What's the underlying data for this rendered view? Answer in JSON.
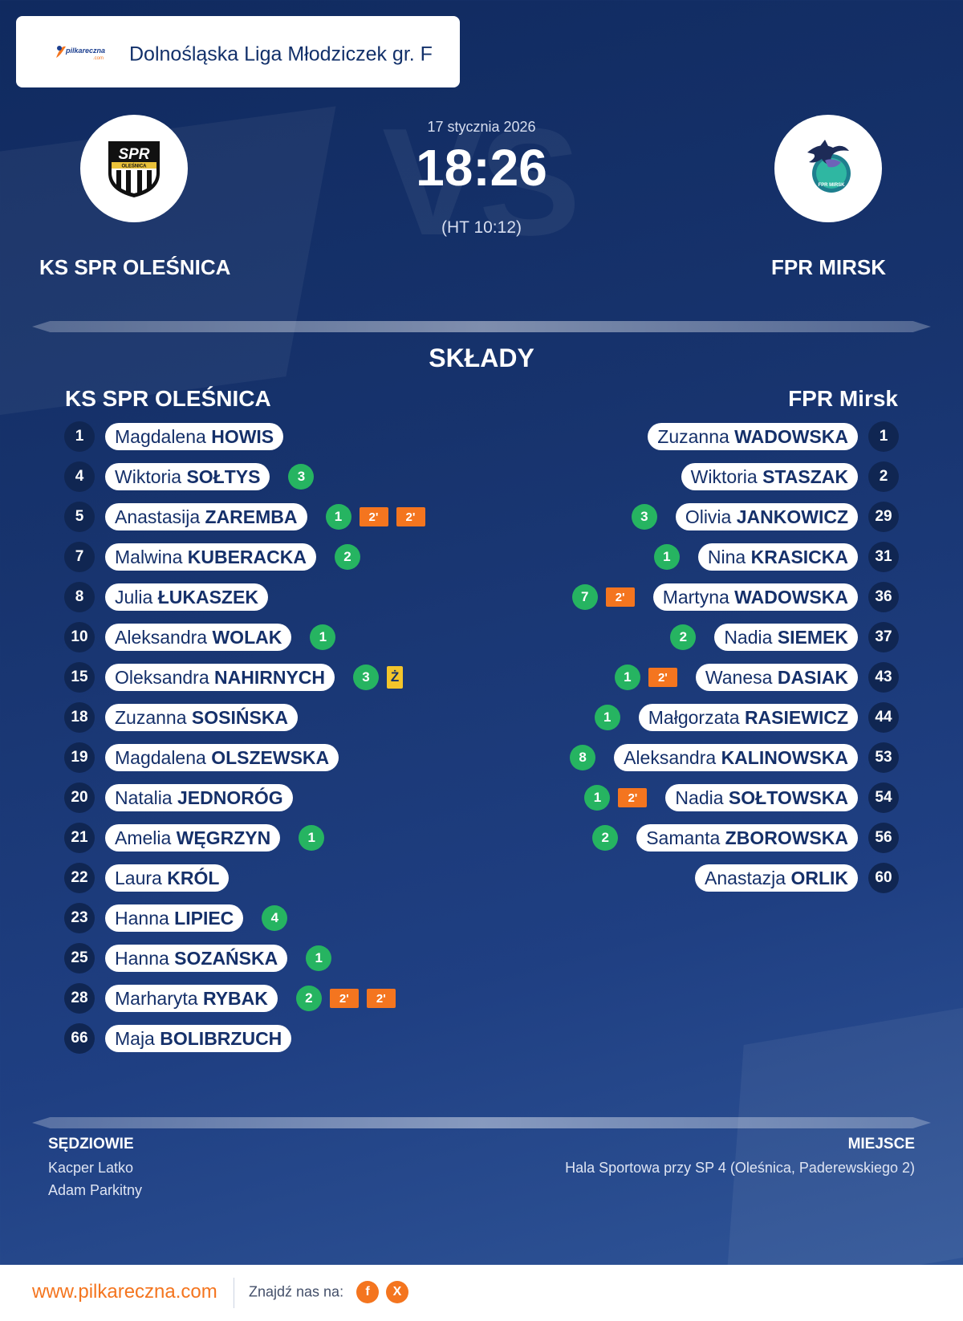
{
  "league": {
    "name": "Dolnośląska Liga Młodziczek gr. F",
    "logo_text": "pilkareczna",
    "logo_sub": ".com"
  },
  "match": {
    "date": "17 stycznia 2026",
    "score": "18:26",
    "halftime": "(HT 10:12)",
    "home": {
      "name": "KS SPR OLEŚNICA",
      "logo_text": "SPR",
      "logo_sub": "OLEŚNICA"
    },
    "away": {
      "name": "FPR MIRSK",
      "logo_text": "FPR MIRSK"
    }
  },
  "lineups": {
    "title": "SKŁADY",
    "home_title": "KS SPR OLEŚNICA",
    "away_title": "FPR Mirsk",
    "home_players": [
      {
        "number": "1",
        "first": "Magdalena",
        "last": "HOWIS",
        "goals": "",
        "penalties": [],
        "card": ""
      },
      {
        "number": "4",
        "first": "Wiktoria",
        "last": "SOŁTYS",
        "goals": "3",
        "penalties": [],
        "card": ""
      },
      {
        "number": "5",
        "first": "Anastasija",
        "last": "ZAREMBA",
        "goals": "1",
        "penalties": [
          "2'",
          "2'"
        ],
        "card": ""
      },
      {
        "number": "7",
        "first": "Malwina",
        "last": "KUBERACKA",
        "goals": "2",
        "penalties": [],
        "card": ""
      },
      {
        "number": "8",
        "first": "Julia",
        "last": "ŁUKASZEK",
        "goals": "",
        "penalties": [],
        "card": ""
      },
      {
        "number": "10",
        "first": "Aleksandra",
        "last": "WOLAK",
        "goals": "1",
        "penalties": [],
        "card": ""
      },
      {
        "number": "15",
        "first": "Oleksandra",
        "last": "NAHIRNYCH",
        "goals": "3",
        "penalties": [],
        "card": "Ż"
      },
      {
        "number": "18",
        "first": "Zuzanna",
        "last": "SOSIŃSKA",
        "goals": "",
        "penalties": [],
        "card": ""
      },
      {
        "number": "19",
        "first": "Magdalena",
        "last": "OLSZEWSKA",
        "goals": "",
        "penalties": [],
        "card": ""
      },
      {
        "number": "20",
        "first": "Natalia",
        "last": "JEDNORÓG",
        "goals": "",
        "penalties": [],
        "card": ""
      },
      {
        "number": "21",
        "first": "Amelia",
        "last": "WĘGRZYN",
        "goals": "1",
        "penalties": [],
        "card": ""
      },
      {
        "number": "22",
        "first": "Laura",
        "last": "KRÓL",
        "goals": "",
        "penalties": [],
        "card": ""
      },
      {
        "number": "23",
        "first": "Hanna",
        "last": "LIPIEC",
        "goals": "4",
        "penalties": [],
        "card": ""
      },
      {
        "number": "25",
        "first": "Hanna",
        "last": "SOZAŃSKA",
        "goals": "1",
        "penalties": [],
        "card": ""
      },
      {
        "number": "28",
        "first": "Marharyta",
        "last": "RYBAK",
        "goals": "2",
        "penalties": [
          "2'",
          "2'"
        ],
        "card": ""
      },
      {
        "number": "66",
        "first": "Maja",
        "last": "BOLIBRZUCH",
        "goals": "",
        "penalties": [],
        "card": ""
      }
    ],
    "away_players": [
      {
        "number": "1",
        "first": "Zuzanna",
        "last": "WADOWSKA",
        "goals": "",
        "penalties": [],
        "card": ""
      },
      {
        "number": "2",
        "first": "Wiktoria",
        "last": "STASZAK",
        "goals": "",
        "penalties": [],
        "card": ""
      },
      {
        "number": "29",
        "first": "Olivia",
        "last": "JANKOWICZ",
        "goals": "3",
        "penalties": [],
        "card": ""
      },
      {
        "number": "31",
        "first": "Nina",
        "last": "KRASICKA",
        "goals": "1",
        "penalties": [],
        "card": ""
      },
      {
        "number": "36",
        "first": "Martyna",
        "last": "WADOWSKA",
        "goals": "7",
        "penalties": [
          "2'"
        ],
        "card": ""
      },
      {
        "number": "37",
        "first": "Nadia",
        "last": "SIEMEK",
        "goals": "2",
        "penalties": [],
        "card": ""
      },
      {
        "number": "43",
        "first": "Wanesa",
        "last": "DASIAK",
        "goals": "1",
        "penalties": [
          "2'"
        ],
        "card": ""
      },
      {
        "number": "44",
        "first": "Małgorzata",
        "last": "RASIEWICZ",
        "goals": "1",
        "penalties": [],
        "card": ""
      },
      {
        "number": "53",
        "first": "Aleksandra",
        "last": "KALINOWSKA",
        "goals": "8",
        "penalties": [],
        "card": ""
      },
      {
        "number": "54",
        "first": "Nadia",
        "last": "SOŁTOWSKA",
        "goals": "1",
        "penalties": [
          "2'"
        ],
        "card": ""
      },
      {
        "number": "56",
        "first": "Samanta",
        "last": "ZBOROWSKA",
        "goals": "2",
        "penalties": [],
        "card": ""
      },
      {
        "number": "60",
        "first": "Anastazja",
        "last": "ORLIK",
        "goals": "",
        "penalties": [],
        "card": ""
      }
    ]
  },
  "officials": {
    "label": "SĘDZIOWIE",
    "names": [
      "Kacper Latko",
      "Adam Parkitny"
    ]
  },
  "venue": {
    "label": "MIEJSCE",
    "text": "Hala Sportowa przy SP 4 (Oleśnica, Paderewskiego 2)"
  },
  "footer": {
    "site": "www.pilkareczna.com",
    "find": "Znajdź nas na:",
    "social": [
      {
        "icon": "facebook-icon",
        "label": "f"
      },
      {
        "icon": "x-icon",
        "label": "X"
      }
    ]
  },
  "colors": {
    "background": "#17336d",
    "goal": "#26b461",
    "penalty": "#f4751f",
    "yellow_card": "#f3c52b",
    "accent": "#f4751f"
  }
}
